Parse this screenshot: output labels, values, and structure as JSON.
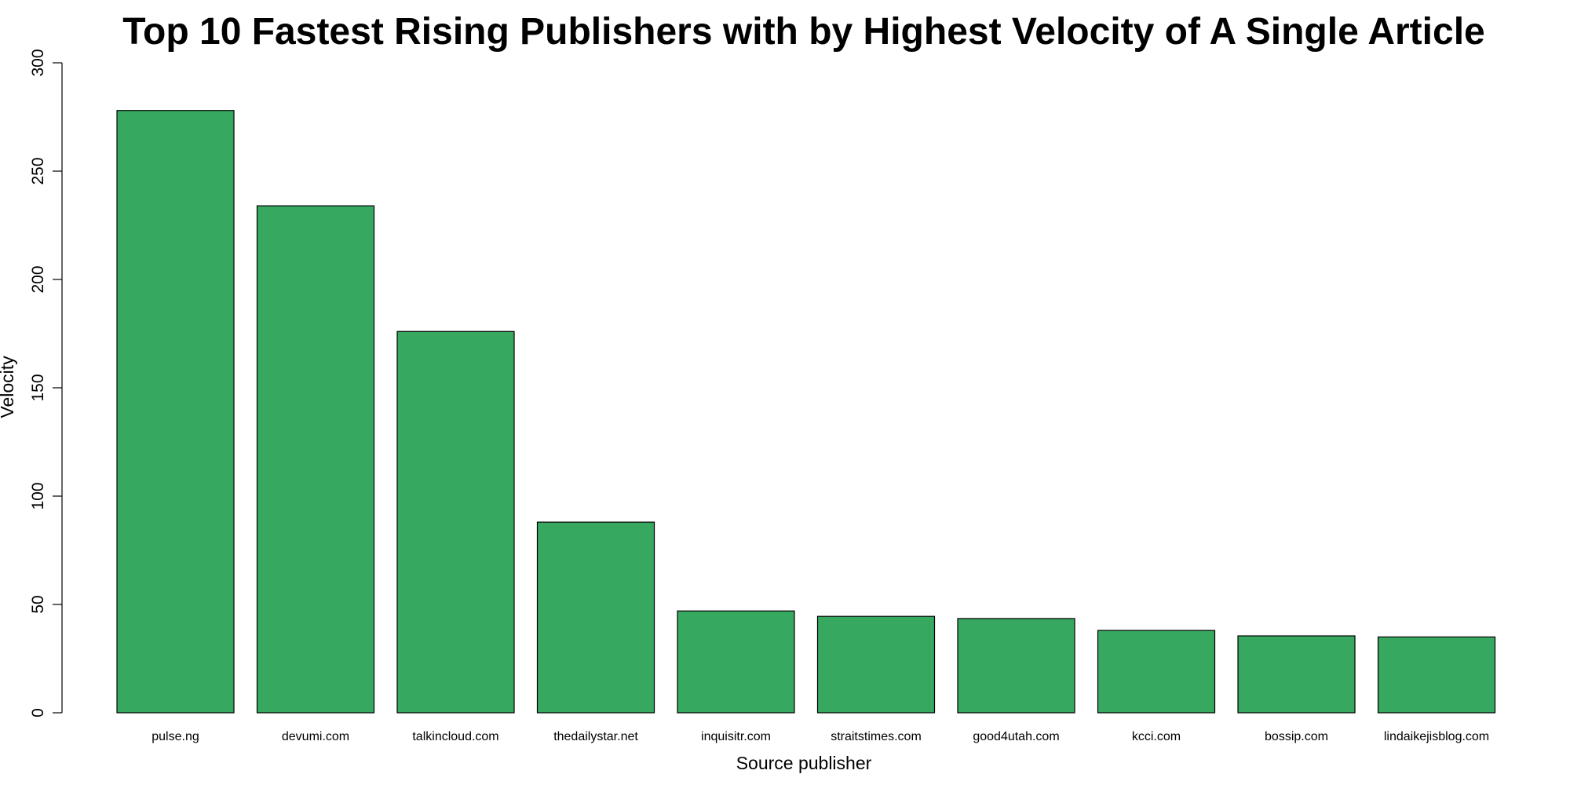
{
  "chart_data": {
    "type": "bar",
    "title": "Top 10 Fastest Rising Publishers with by Highest Velocity of A Single Article",
    "xlabel": "Source publisher",
    "ylabel": "Velocity",
    "categories": [
      "pulse.ng",
      "devumi.com",
      "talkincloud.com",
      "thedailystar.net",
      "inquisitr.com",
      "straitstimes.com",
      "good4utah.com",
      "kcci.com",
      "bossip.com",
      "lindaikejisblog.com"
    ],
    "values": [
      278,
      234,
      176,
      88,
      47,
      44.5,
      43.5,
      38,
      35.5,
      35
    ],
    "ylim": [
      0,
      300
    ],
    "yticks": [
      0,
      50,
      100,
      150,
      200,
      250,
      300
    ],
    "grid": false,
    "bar_color": "#36a85f",
    "edge_color": "#000000"
  }
}
